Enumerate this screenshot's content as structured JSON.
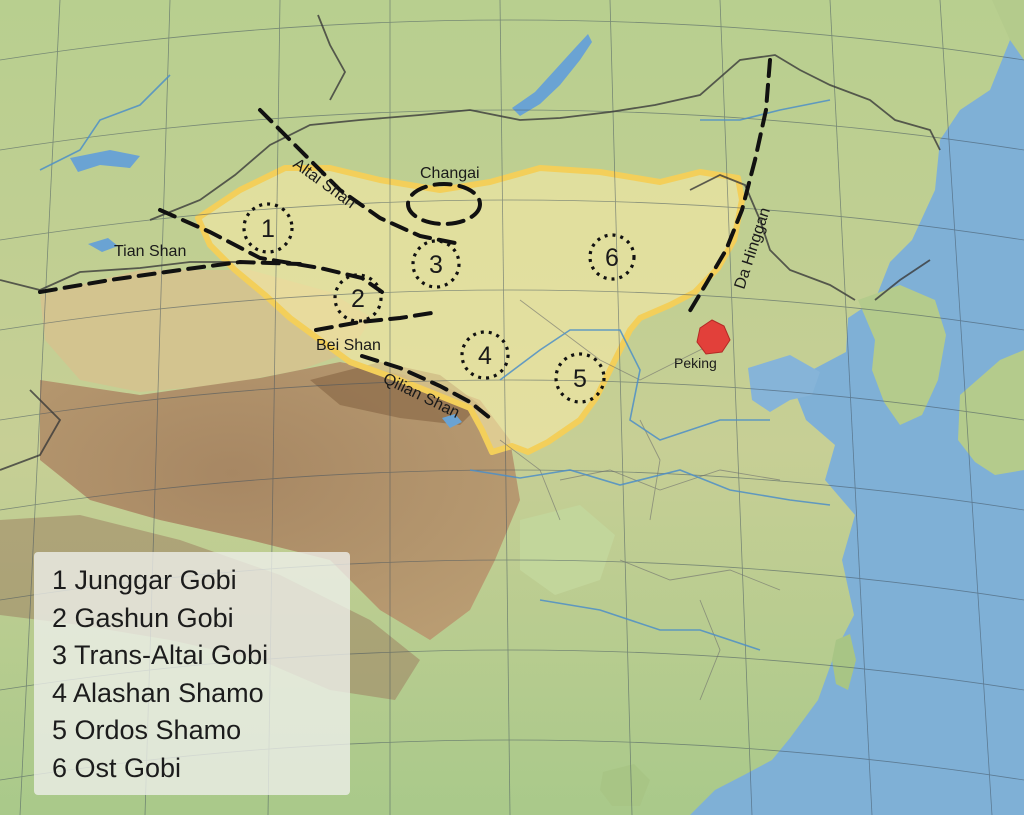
{
  "map": {
    "range_labels": {
      "altai": "Altai Shan",
      "changai": "Changai",
      "tian": "Tian Shan",
      "bei": "Bei Shan",
      "qilian": "Qilian Shan",
      "dahinggan": "Da Hinggan"
    },
    "city": "Peking",
    "region_markers": [
      "1",
      "2",
      "3",
      "4",
      "5",
      "6"
    ],
    "colors": {
      "gobi_outline": "#f3cf5a",
      "gobi_fill": "#f6e8a6",
      "city_marker": "#e2403a",
      "sea": "#7fb0d6",
      "mountain_line": "#111111"
    }
  },
  "legend": {
    "items": [
      "1 Junggar Gobi",
      "2 Gashun Gobi",
      "3 Trans-Altai Gobi",
      "4 Alashan Shamo",
      "5 Ordos Shamo",
      "6 Ost Gobi"
    ]
  }
}
